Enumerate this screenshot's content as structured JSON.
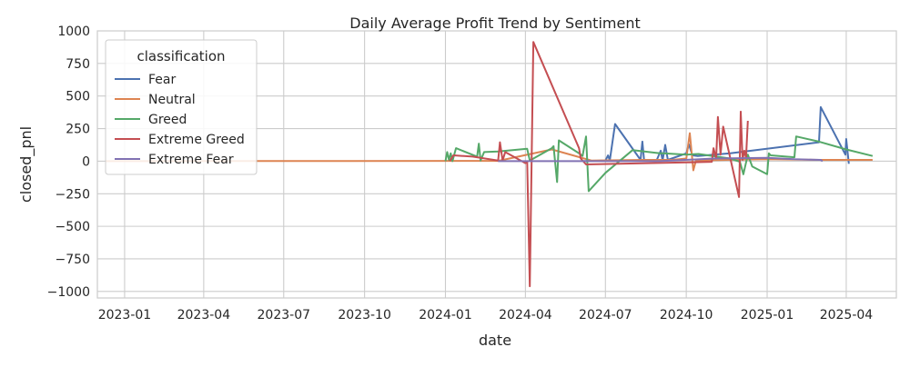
{
  "chart_data": {
    "type": "line",
    "title": "Daily Average Profit Trend by Sentiment",
    "xlabel": "date",
    "ylabel": "closed_pnl",
    "x_axis": "date",
    "xlim": [
      "2022-12-01",
      "2025-05-28"
    ],
    "ylim": [
      -1050,
      1000
    ],
    "x_ticks": [
      "2023-01",
      "2023-04",
      "2023-07",
      "2023-10",
      "2024-01",
      "2024-04",
      "2024-07",
      "2024-10",
      "2025-01",
      "2025-04"
    ],
    "y_ticks": [
      -1000,
      -750,
      -500,
      -250,
      0,
      250,
      500,
      750,
      1000
    ],
    "y_tick_labels": [
      "−1000",
      "−750",
      "−500",
      "−250",
      "0",
      "250",
      "500",
      "750",
      "1000"
    ],
    "grid": true,
    "legend": {
      "title": "classification",
      "placement": "top-left"
    },
    "series": [
      {
        "name": "Fear",
        "color": "#4c72b0",
        "points": [
          [
            "2024-06-05",
            0
          ],
          [
            "2024-07-01",
            5
          ],
          [
            "2024-07-04",
            45
          ],
          [
            "2024-07-06",
            5
          ],
          [
            "2024-07-12",
            285
          ],
          [
            "2024-08-10",
            10
          ],
          [
            "2024-08-12",
            150
          ],
          [
            "2024-08-14",
            5
          ],
          [
            "2024-08-28",
            2
          ],
          [
            "2024-09-02",
            80
          ],
          [
            "2024-09-04",
            5
          ],
          [
            "2024-09-07",
            125
          ],
          [
            "2024-09-10",
            10
          ],
          [
            "2024-10-01",
            60
          ],
          [
            "2024-10-04",
            130
          ],
          [
            "2024-10-08",
            45
          ],
          [
            "2024-10-14",
            40
          ],
          [
            "2024-11-20",
            60
          ],
          [
            "2025-03-01",
            145
          ],
          [
            "2025-03-03",
            415
          ],
          [
            "2025-03-31",
            50
          ],
          [
            "2025-04-01",
            170
          ],
          [
            "2025-04-04",
            -20
          ]
        ]
      },
      {
        "name": "Neutral",
        "color": "#dd8452",
        "points": [
          [
            "2022-12-10",
            0
          ],
          [
            "2024-03-01",
            2
          ],
          [
            "2024-05-01",
            90
          ],
          [
            "2024-06-15",
            5
          ],
          [
            "2024-08-15",
            10
          ],
          [
            "2024-09-15",
            10
          ],
          [
            "2024-10-01",
            20
          ],
          [
            "2024-10-05",
            215
          ],
          [
            "2024-10-09",
            -70
          ],
          [
            "2024-10-12",
            5
          ],
          [
            "2024-11-15",
            10
          ],
          [
            "2025-01-01",
            15
          ],
          [
            "2025-03-01",
            10
          ],
          [
            "2025-05-01",
            10
          ]
        ]
      },
      {
        "name": "Greed",
        "color": "#55a868",
        "points": [
          [
            "2024-01-01",
            0
          ],
          [
            "2024-01-03",
            70
          ],
          [
            "2024-01-05",
            10
          ],
          [
            "2024-01-07",
            60
          ],
          [
            "2024-01-09",
            0
          ],
          [
            "2024-01-13",
            100
          ],
          [
            "2024-02-06",
            35
          ],
          [
            "2024-02-08",
            135
          ],
          [
            "2024-02-10",
            5
          ],
          [
            "2024-02-14",
            70
          ],
          [
            "2024-03-01",
            75
          ],
          [
            "2024-04-03",
            95
          ],
          [
            "2024-04-06",
            5
          ],
          [
            "2024-05-01",
            100
          ],
          [
            "2024-05-03",
            115
          ],
          [
            "2024-05-07",
            -160
          ],
          [
            "2024-05-09",
            160
          ],
          [
            "2024-06-01",
            60
          ],
          [
            "2024-06-05",
            40
          ],
          [
            "2024-06-09",
            190
          ],
          [
            "2024-06-12",
            -230
          ],
          [
            "2024-07-01",
            -90
          ],
          [
            "2024-08-01",
            85
          ],
          [
            "2024-09-01",
            60
          ],
          [
            "2024-09-05",
            60
          ],
          [
            "2024-10-01",
            50
          ],
          [
            "2024-10-15",
            55
          ],
          [
            "2024-11-20",
            20
          ],
          [
            "2024-12-01",
            -5
          ],
          [
            "2024-12-05",
            -100
          ],
          [
            "2024-12-10",
            50
          ],
          [
            "2024-12-15",
            -40
          ],
          [
            "2025-01-01",
            -100
          ],
          [
            "2025-01-03",
            60
          ],
          [
            "2025-01-05",
            45
          ],
          [
            "2025-02-01",
            30
          ],
          [
            "2025-02-03",
            190
          ],
          [
            "2025-03-01",
            150
          ],
          [
            "2025-04-01",
            90
          ],
          [
            "2025-05-01",
            40
          ]
        ]
      },
      {
        "name": "Extreme Greed",
        "color": "#c44e52",
        "points": [
          [
            "2024-01-06",
            0
          ],
          [
            "2024-01-10",
            45
          ],
          [
            "2024-02-01",
            35
          ],
          [
            "2024-03-01",
            5
          ],
          [
            "2024-03-03",
            145
          ],
          [
            "2024-03-06",
            5
          ],
          [
            "2024-03-09",
            70
          ],
          [
            "2024-04-01",
            -15
          ],
          [
            "2024-04-03",
            0
          ],
          [
            "2024-04-06",
            -960
          ],
          [
            "2024-04-10",
            915
          ],
          [
            "2024-06-01",
            100
          ],
          [
            "2024-06-03",
            20
          ],
          [
            "2024-06-09",
            -25
          ],
          [
            "2024-10-01",
            -10
          ],
          [
            "2024-10-30",
            -5
          ],
          [
            "2024-11-01",
            100
          ],
          [
            "2024-11-04",
            20
          ],
          [
            "2024-11-06",
            340
          ],
          [
            "2024-11-09",
            50
          ],
          [
            "2024-11-12",
            265
          ],
          [
            "2024-11-30",
            -275
          ],
          [
            "2024-12-02",
            380
          ],
          [
            "2024-12-04",
            10
          ],
          [
            "2024-12-06",
            80
          ],
          [
            "2024-12-08",
            25
          ],
          [
            "2024-12-10",
            310
          ]
        ]
      },
      {
        "name": "Extreme Fear",
        "color": "#8172b3",
        "points": [
          [
            "2024-03-01",
            0
          ],
          [
            "2024-06-15",
            0
          ],
          [
            "2024-09-01",
            0
          ],
          [
            "2024-11-01",
            20
          ],
          [
            "2025-01-01",
            25
          ],
          [
            "2025-02-01",
            15
          ],
          [
            "2025-03-03",
            10
          ],
          [
            "2025-03-05",
            0
          ]
        ]
      }
    ]
  }
}
